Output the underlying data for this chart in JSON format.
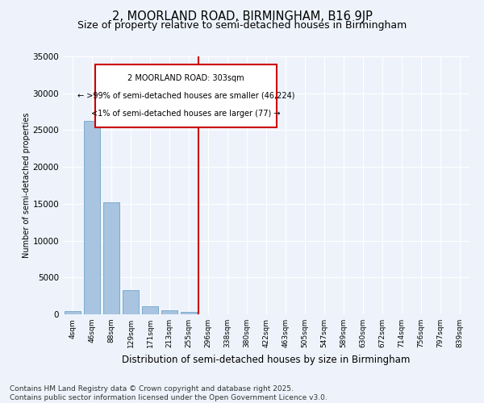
{
  "title": "2, MOORLAND ROAD, BIRMINGHAM, B16 9JP",
  "subtitle": "Size of property relative to semi-detached houses in Birmingham",
  "xlabel": "Distribution of semi-detached houses by size in Birmingham",
  "ylabel": "Number of semi-detached properties",
  "categories": [
    "4sqm",
    "46sqm",
    "88sqm",
    "129sqm",
    "171sqm",
    "213sqm",
    "255sqm",
    "296sqm",
    "338sqm",
    "380sqm",
    "422sqm",
    "463sqm",
    "505sqm",
    "547sqm",
    "589sqm",
    "630sqm",
    "672sqm",
    "714sqm",
    "756sqm",
    "797sqm",
    "839sqm"
  ],
  "values": [
    400,
    26200,
    15200,
    3300,
    1100,
    550,
    350,
    0,
    0,
    0,
    0,
    0,
    0,
    0,
    0,
    0,
    0,
    0,
    0,
    0,
    0
  ],
  "bar_color": "#a8c4e0",
  "bar_edge_color": "#5a9abf",
  "vline_x_index": 7,
  "vline_color": "#cc0000",
  "annotation_line1": "2 MOORLAND ROAD: 303sqm",
  "annotation_line2": "← >99% of semi-detached houses are smaller (46,224)",
  "annotation_line3": "<1% of semi-detached houses are larger (77) →",
  "ylim": [
    0,
    35000
  ],
  "yticks": [
    0,
    5000,
    10000,
    15000,
    20000,
    25000,
    30000,
    35000
  ],
  "bg_color": "#eef3fb",
  "grid_color": "#ffffff",
  "footer": "Contains HM Land Registry data © Crown copyright and database right 2025.\nContains public sector information licensed under the Open Government Licence v3.0.",
  "title_fontsize": 10.5,
  "subtitle_fontsize": 9,
  "footer_fontsize": 6.5,
  "ylabel_fontsize": 7,
  "xlabel_fontsize": 8.5,
  "tick_fontsize": 6.5,
  "ytick_fontsize": 7.5,
  "ann_fontsize": 7
}
